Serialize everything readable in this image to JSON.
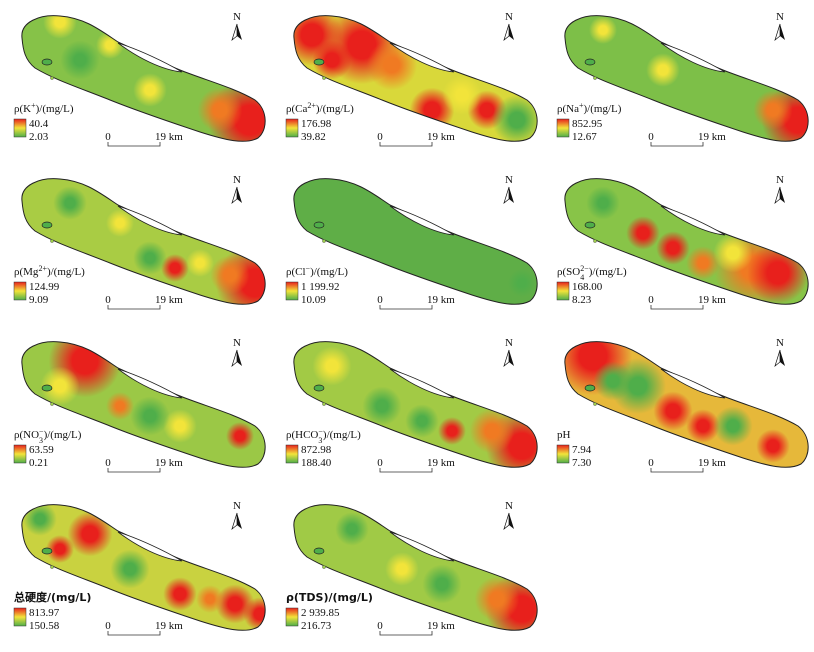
{
  "scale_bar": {
    "start": "0",
    "end": "19 km"
  },
  "north": "N",
  "panels": [
    {
      "label": [
        "ρ(K",
        "+",
        ")/(mg/L)"
      ],
      "max": "40.4",
      "min": "2.03"
    },
    {
      "label": [
        "ρ(Ca",
        "2+",
        ")/(mg/L)"
      ],
      "max": "176.98",
      "min": "39.82"
    },
    {
      "label": [
        "ρ(Na",
        "+",
        ")/(mg/L)"
      ],
      "max": "852.95",
      "min": "12.67"
    },
    {
      "label": [
        "ρ(Mg",
        "2+",
        ")/(mg/L)"
      ],
      "max": "124.99",
      "min": "9.09"
    },
    {
      "label": [
        "ρ(Cl",
        "−",
        ")/(mg/L)"
      ],
      "max": "1 199.92",
      "min": "10.09"
    },
    {
      "label": [
        "ρ(SO",
        "4",
        "",
        "2−",
        ")/(mg/L)"
      ],
      "max": "168.00",
      "min": "8.23"
    },
    {
      "label": [
        "ρ(NO",
        "3",
        "",
        "−",
        ")/(mg/L)"
      ],
      "max": "63.59",
      "min": "0.21"
    },
    {
      "label": [
        "ρ(HCO",
        "3",
        "",
        "−",
        ")/(mg/L)"
      ],
      "max": "872.98",
      "min": "188.40"
    },
    {
      "label": [
        "pH"
      ],
      "max": "7.94",
      "min": "7.30"
    },
    {
      "label": [
        "总硬度/(mg/L)"
      ],
      "max": "813.97",
      "min": "150.58"
    },
    {
      "label": [
        "ρ(TDS)/(mg/L)"
      ],
      "max": "2 939.85",
      "min": "216.73"
    }
  ]
}
